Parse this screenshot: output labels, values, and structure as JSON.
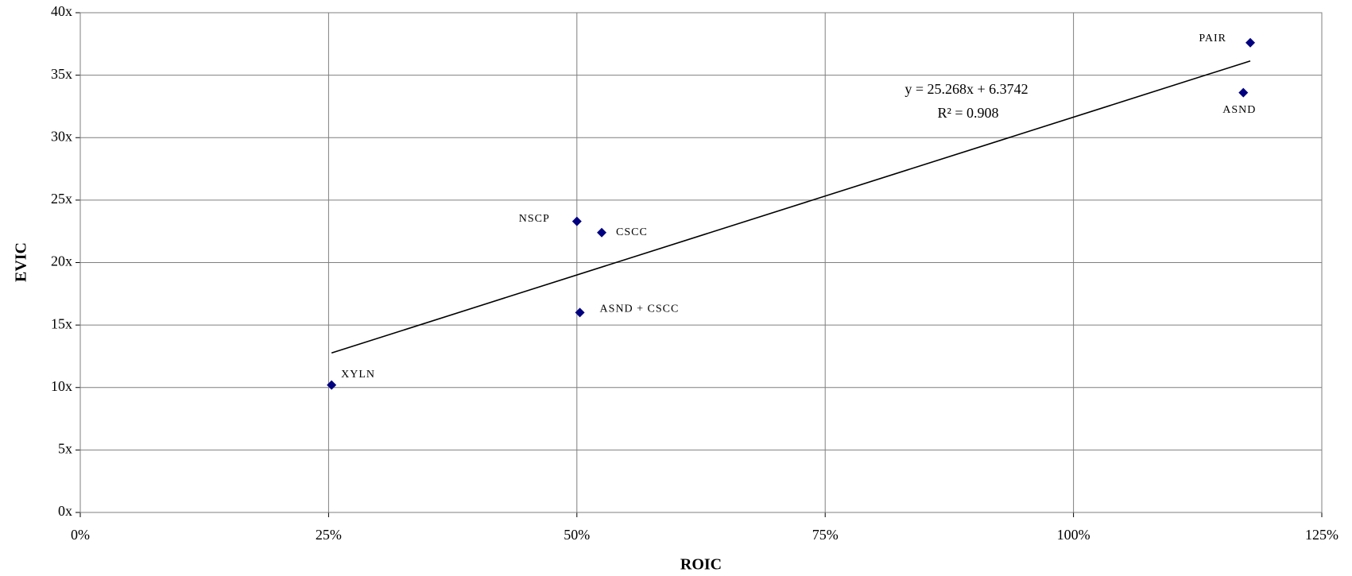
{
  "chart_data": {
    "type": "scatter",
    "x_label": "ROIC",
    "y_label": "EVIC",
    "color": "#000080",
    "grid": true,
    "xlim": [
      0,
      1.25
    ],
    "ylim": [
      0,
      40
    ],
    "xticks": [
      {
        "value": 0,
        "label": "0%"
      },
      {
        "value": 0.25,
        "label": "25%"
      },
      {
        "value": 0.5,
        "label": "50%"
      },
      {
        "value": 0.75,
        "label": "75%"
      },
      {
        "value": 1,
        "label": "100%"
      },
      {
        "value": 1.25,
        "label": "125%"
      }
    ],
    "yticks": [
      {
        "value": 0,
        "label": "0x"
      },
      {
        "value": 5,
        "label": "5x"
      },
      {
        "value": 10,
        "label": "10x"
      },
      {
        "value": 15,
        "label": "15x"
      },
      {
        "value": 20,
        "label": "20x"
      },
      {
        "value": 25,
        "label": "25x"
      },
      {
        "value": 30,
        "label": "30x"
      },
      {
        "value": 35,
        "label": "35x"
      },
      {
        "value": 40,
        "label": "40x"
      }
    ],
    "point_labels": [
      "XYLN",
      "NSCP",
      "CSCC",
      "ASND + CSCC",
      "PAIR",
      "ASND"
    ],
    "x": [
      0.253,
      0.5,
      0.525,
      0.503,
      1.178,
      1.171
    ],
    "values": [
      10.2,
      23.3,
      22.4,
      16.0,
      37.6,
      33.6
    ],
    "trendline": {
      "slope": 25.268,
      "intercept": 6.3742,
      "equation": "y = 25.268x + 6.3742",
      "r2_label": "R² = 0.908"
    }
  }
}
